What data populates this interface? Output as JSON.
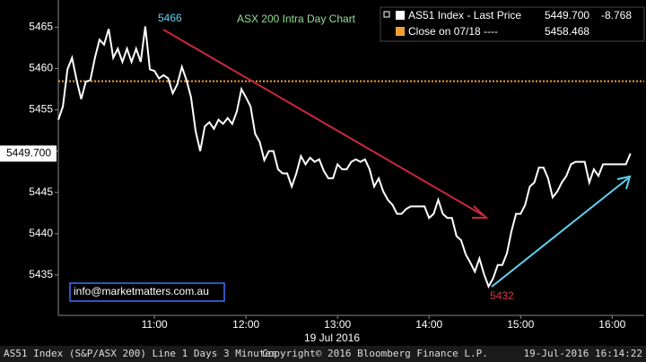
{
  "chart_data": {
    "type": "line",
    "title": "ASX 200 Intra Day Chart",
    "x_label": "19 Jul 2016",
    "footer": [
      "AS51 Index (S&P/ASX 200) Line 1 Days 3 Minutes",
      "Copyright© 2016 Bloomberg Finance L.P.",
      "19-Jul-2016 16:14:22"
    ],
    "contact": "info@marketmatters.com.au",
    "annotations": [
      {
        "text": "5466",
        "color": "#5fd3f3"
      },
      {
        "text": "5432",
        "color": "#d23c4c"
      }
    ],
    "xlim": [
      597,
      981
    ],
    "xticks": [
      {
        "value": 660,
        "label": "11:00"
      },
      {
        "value": 720,
        "label": "12:00"
      },
      {
        "value": 780,
        "label": "13:00"
      },
      {
        "value": 840,
        "label": "14:00"
      },
      {
        "value": 900,
        "label": "15:00"
      },
      {
        "value": 960,
        "label": "16:00"
      }
    ],
    "ylim": [
      5430.1,
      5468.3
    ],
    "yticks": [
      5435,
      5440,
      5445,
      5450,
      5455,
      5460,
      5465
    ],
    "x": [
      597,
      600,
      603,
      606,
      609,
      612,
      615,
      618,
      621,
      624,
      627,
      630,
      633,
      636,
      639,
      642,
      645,
      648,
      651,
      654,
      657,
      660,
      663,
      666,
      669,
      672,
      675,
      678,
      681,
      684,
      687,
      690,
      693,
      696,
      699,
      702,
      705,
      708,
      711,
      714,
      717,
      720,
      723,
      726,
      729,
      732,
      735,
      738,
      741,
      744,
      747,
      750,
      753,
      756,
      759,
      762,
      765,
      768,
      771,
      774,
      777,
      780,
      783,
      786,
      789,
      792,
      795,
      798,
      801,
      804,
      807,
      810,
      813,
      816,
      819,
      822,
      825,
      828,
      831,
      834,
      837,
      840,
      843,
      846,
      849,
      852,
      855,
      858,
      861,
      864,
      867,
      870,
      873,
      876,
      879,
      882,
      885,
      888,
      891,
      894,
      897,
      900,
      903,
      906,
      909,
      912,
      915,
      918,
      921,
      924,
      927,
      930,
      933,
      936,
      939,
      942,
      945,
      948,
      951,
      954,
      957,
      960,
      963,
      966,
      969,
      972
    ],
    "series": [
      {
        "name": "AS51 Index - Last Price",
        "color": "#ffffff",
        "last_label": "5449.700",
        "change_label": "-8.768",
        "values": [
          5453.8,
          5455.4,
          5459.9,
          5461.3,
          5458.6,
          5456.3,
          5458.4,
          5458.6,
          5461.3,
          5463.5,
          5462.9,
          5464.8,
          5461.3,
          5462.4,
          5460.8,
          5462.4,
          5460.8,
          5462.4,
          5460.8,
          5465.1,
          5459.9,
          5459.7,
          5458.8,
          5459.2,
          5458.8,
          5457.0,
          5458.1,
          5460.2,
          5458.6,
          5456.5,
          5452.4,
          5450.0,
          5453.0,
          5453.5,
          5452.7,
          5453.8,
          5453.3,
          5454.0,
          5453.3,
          5454.8,
          5457.5,
          5456.5,
          5455.4,
          5452.1,
          5451.1,
          5448.9,
          5450.0,
          5450.0,
          5447.8,
          5447.3,
          5447.3,
          5445.7,
          5447.3,
          5449.4,
          5448.4,
          5449.2,
          5448.7,
          5449.0,
          5447.6,
          5446.7,
          5446.7,
          5448.4,
          5447.8,
          5447.8,
          5448.7,
          5449.0,
          5448.7,
          5449.0,
          5447.8,
          5445.7,
          5446.7,
          5445.1,
          5444.1,
          5443.5,
          5442.4,
          5442.4,
          5443.0,
          5443.3,
          5443.3,
          5443.3,
          5443.3,
          5441.9,
          5442.4,
          5444.1,
          5442.4,
          5441.9,
          5441.9,
          5439.7,
          5439.2,
          5437.5,
          5436.5,
          5435.4,
          5437.0,
          5435.1,
          5433.6,
          5434.6,
          5436.2,
          5436.2,
          5437.6,
          5440.3,
          5442.4,
          5442.4,
          5443.5,
          5445.7,
          5446.2,
          5448.0,
          5448.0,
          5446.7,
          5444.4,
          5445.1,
          5446.2,
          5447.0,
          5448.4,
          5448.7,
          5448.7,
          5448.7,
          5446.2,
          5447.8,
          5447.0,
          5448.4,
          5448.4,
          5448.4,
          5448.4,
          5448.4,
          5448.4,
          5449.7
        ]
      }
    ],
    "reference_lines": [
      {
        "name": "Close on 07/18 ----",
        "value": 5458.468,
        "color": "#f0a030"
      }
    ]
  }
}
